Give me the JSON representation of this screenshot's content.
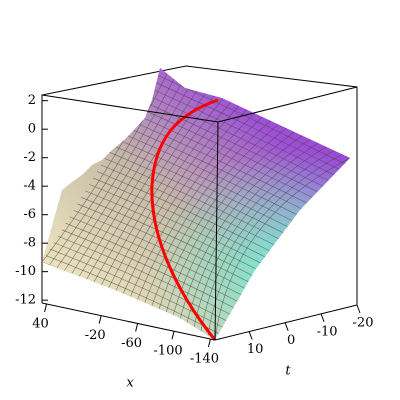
{
  "chart_data": {
    "type": "surface",
    "x_label": "x",
    "t_label": "t",
    "xlim": [
      45,
      -145
    ],
    "xticks": [
      40,
      -20,
      -60,
      -100,
      -140
    ],
    "tlim": [
      19.5,
      -20
    ],
    "tticks": [
      10,
      0,
      -10,
      -20
    ],
    "zlim": [
      -12.2,
      2.4
    ],
    "zticks": [
      2,
      0,
      -2,
      -4,
      -6,
      -8,
      -10,
      -12
    ],
    "curve_color": "#ff0000"
  }
}
